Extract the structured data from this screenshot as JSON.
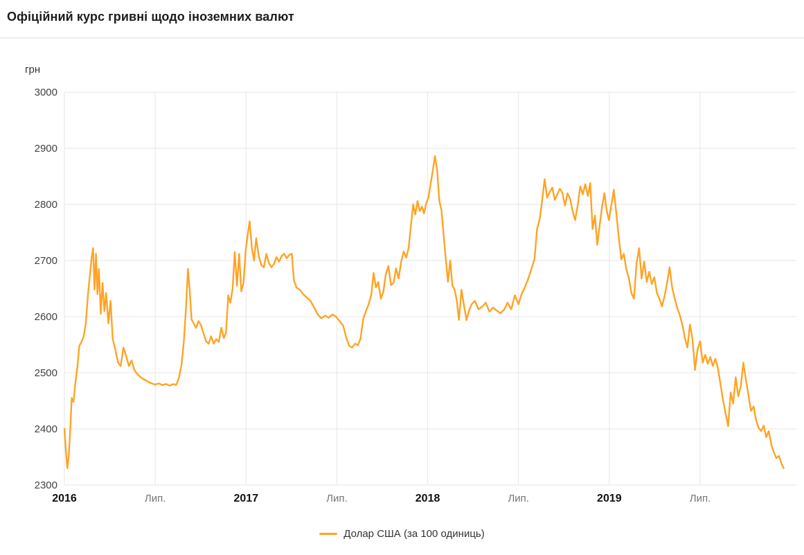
{
  "header": {
    "title": "Офіційний курс гривні щодо іноземних валют"
  },
  "chart_data": {
    "type": "line",
    "title": "Офіційний курс гривні щодо іноземних валют",
    "unit_label": "грн",
    "grid": true,
    "legend_position": "bottom",
    "colors": {
      "grid": "#e6e6e6",
      "y_label": "#424242",
      "year_label": "#111111",
      "month_label": "#757575"
    },
    "y_axis": {
      "range": [
        2300,
        3000
      ],
      "ticks": [
        3000,
        2900,
        2800,
        2700,
        2600,
        2500,
        2400,
        2300
      ]
    },
    "x_axis": {
      "range": [
        2016.0,
        2020.03
      ],
      "ticks": [
        {
          "x": 2016.0,
          "label": "2016",
          "style": "year"
        },
        {
          "x": 2016.5,
          "label": "Лип.",
          "style": "month"
        },
        {
          "x": 2017.0,
          "label": "2017",
          "style": "year"
        },
        {
          "x": 2017.5,
          "label": "Лип.",
          "style": "month"
        },
        {
          "x": 2018.0,
          "label": "2018",
          "style": "year"
        },
        {
          "x": 2018.5,
          "label": "Лип.",
          "style": "month"
        },
        {
          "x": 2019.0,
          "label": "2019",
          "style": "year"
        },
        {
          "x": 2019.5,
          "label": "Лип.",
          "style": "month"
        }
      ]
    },
    "series": [
      {
        "name": "Долар США (за 100 одиниць)",
        "color": "#ffa324",
        "points": [
          [
            2016.0,
            2400
          ],
          [
            2016.008,
            2362
          ],
          [
            2016.016,
            2330
          ],
          [
            2016.024,
            2352
          ],
          [
            2016.032,
            2398
          ],
          [
            2016.04,
            2455
          ],
          [
            2016.05,
            2448
          ],
          [
            2016.06,
            2480
          ],
          [
            2016.072,
            2512
          ],
          [
            2016.082,
            2548
          ],
          [
            2016.094,
            2555
          ],
          [
            2016.106,
            2565
          ],
          [
            2016.118,
            2588
          ],
          [
            2016.13,
            2640
          ],
          [
            2016.14,
            2672
          ],
          [
            2016.15,
            2705
          ],
          [
            2016.158,
            2722
          ],
          [
            2016.166,
            2648
          ],
          [
            2016.174,
            2712
          ],
          [
            2016.182,
            2640
          ],
          [
            2016.19,
            2685
          ],
          [
            2016.2,
            2605
          ],
          [
            2016.21,
            2660
          ],
          [
            2016.22,
            2610
          ],
          [
            2016.23,
            2642
          ],
          [
            2016.242,
            2588
          ],
          [
            2016.254,
            2628
          ],
          [
            2016.266,
            2560
          ],
          [
            2016.28,
            2542
          ],
          [
            2016.295,
            2518
          ],
          [
            2016.31,
            2512
          ],
          [
            2016.325,
            2545
          ],
          [
            2016.34,
            2530
          ],
          [
            2016.355,
            2512
          ],
          [
            2016.37,
            2522
          ],
          [
            2016.385,
            2505
          ],
          [
            2016.4,
            2498
          ],
          [
            2016.42,
            2492
          ],
          [
            2016.44,
            2488
          ],
          [
            2016.46,
            2484
          ],
          [
            2016.48,
            2481
          ],
          [
            2016.5,
            2479
          ],
          [
            2016.52,
            2481
          ],
          [
            2016.54,
            2478
          ],
          [
            2016.56,
            2480
          ],
          [
            2016.58,
            2477
          ],
          [
            2016.6,
            2480
          ],
          [
            2016.615,
            2478
          ],
          [
            2016.63,
            2490
          ],
          [
            2016.645,
            2515
          ],
          [
            2016.658,
            2558
          ],
          [
            2016.67,
            2618
          ],
          [
            2016.68,
            2685
          ],
          [
            2016.69,
            2645
          ],
          [
            2016.7,
            2595
          ],
          [
            2016.712,
            2588
          ],
          [
            2016.725,
            2580
          ],
          [
            2016.738,
            2592
          ],
          [
            2016.752,
            2585
          ],
          [
            2016.766,
            2570
          ],
          [
            2016.78,
            2556
          ],
          [
            2016.794,
            2552
          ],
          [
            2016.808,
            2565
          ],
          [
            2016.822,
            2552
          ],
          [
            2016.836,
            2560
          ],
          [
            2016.85,
            2555
          ],
          [
            2016.864,
            2580
          ],
          [
            2016.878,
            2562
          ],
          [
            2016.89,
            2572
          ],
          [
            2016.902,
            2638
          ],
          [
            2016.914,
            2625
          ],
          [
            2016.926,
            2650
          ],
          [
            2016.938,
            2715
          ],
          [
            2016.95,
            2655
          ],
          [
            2016.962,
            2712
          ],
          [
            2016.974,
            2645
          ],
          [
            2016.986,
            2660
          ],
          [
            2016.998,
            2718
          ],
          [
            2017.01,
            2748
          ],
          [
            2017.02,
            2770
          ],
          [
            2017.032,
            2722
          ],
          [
            2017.044,
            2700
          ],
          [
            2017.056,
            2740
          ],
          [
            2017.07,
            2708
          ],
          [
            2017.084,
            2692
          ],
          [
            2017.098,
            2688
          ],
          [
            2017.112,
            2712
          ],
          [
            2017.126,
            2695
          ],
          [
            2017.14,
            2688
          ],
          [
            2017.154,
            2694
          ],
          [
            2017.168,
            2706
          ],
          [
            2017.182,
            2698
          ],
          [
            2017.196,
            2708
          ],
          [
            2017.21,
            2712
          ],
          [
            2017.224,
            2704
          ],
          [
            2017.238,
            2710
          ],
          [
            2017.252,
            2712
          ],
          [
            2017.264,
            2664
          ],
          [
            2017.278,
            2652
          ],
          [
            2017.295,
            2648
          ],
          [
            2017.315,
            2640
          ],
          [
            2017.335,
            2634
          ],
          [
            2017.355,
            2628
          ],
          [
            2017.375,
            2616
          ],
          [
            2017.395,
            2604
          ],
          [
            2017.415,
            2597
          ],
          [
            2017.435,
            2602
          ],
          [
            2017.455,
            2598
          ],
          [
            2017.475,
            2604
          ],
          [
            2017.495,
            2600
          ],
          [
            2017.515,
            2592
          ],
          [
            2017.535,
            2584
          ],
          [
            2017.552,
            2562
          ],
          [
            2017.568,
            2548
          ],
          [
            2017.584,
            2545
          ],
          [
            2017.6,
            2552
          ],
          [
            2017.615,
            2549
          ],
          [
            2017.63,
            2560
          ],
          [
            2017.645,
            2596
          ],
          [
            2017.66,
            2610
          ],
          [
            2017.675,
            2622
          ],
          [
            2017.69,
            2640
          ],
          [
            2017.702,
            2678
          ],
          [
            2017.715,
            2652
          ],
          [
            2017.728,
            2662
          ],
          [
            2017.742,
            2632
          ],
          [
            2017.756,
            2645
          ],
          [
            2017.77,
            2676
          ],
          [
            2017.784,
            2690
          ],
          [
            2017.798,
            2656
          ],
          [
            2017.812,
            2660
          ],
          [
            2017.826,
            2686
          ],
          [
            2017.84,
            2668
          ],
          [
            2017.854,
            2698
          ],
          [
            2017.868,
            2716
          ],
          [
            2017.882,
            2705
          ],
          [
            2017.895,
            2722
          ],
          [
            2017.908,
            2762
          ],
          [
            2017.92,
            2800
          ],
          [
            2017.932,
            2782
          ],
          [
            2017.944,
            2806
          ],
          [
            2017.956,
            2788
          ],
          [
            2017.968,
            2796
          ],
          [
            2017.98,
            2784
          ],
          [
            2017.992,
            2802
          ],
          [
            2018.004,
            2812
          ],
          [
            2018.016,
            2836
          ],
          [
            2018.028,
            2860
          ],
          [
            2018.04,
            2886
          ],
          [
            2018.052,
            2862
          ],
          [
            2018.064,
            2806
          ],
          [
            2018.076,
            2790
          ],
          [
            2018.088,
            2745
          ],
          [
            2018.1,
            2702
          ],
          [
            2018.112,
            2662
          ],
          [
            2018.124,
            2700
          ],
          [
            2018.136,
            2656
          ],
          [
            2018.148,
            2648
          ],
          [
            2018.16,
            2630
          ],
          [
            2018.172,
            2594
          ],
          [
            2018.186,
            2648
          ],
          [
            2018.2,
            2620
          ],
          [
            2018.214,
            2594
          ],
          [
            2018.228,
            2612
          ],
          [
            2018.242,
            2622
          ],
          [
            2018.26,
            2628
          ],
          [
            2018.28,
            2613
          ],
          [
            2018.3,
            2618
          ],
          [
            2018.32,
            2625
          ],
          [
            2018.34,
            2609
          ],
          [
            2018.36,
            2616
          ],
          [
            2018.38,
            2611
          ],
          [
            2018.4,
            2606
          ],
          [
            2018.42,
            2612
          ],
          [
            2018.44,
            2625
          ],
          [
            2018.46,
            2613
          ],
          [
            2018.48,
            2638
          ],
          [
            2018.5,
            2622
          ],
          [
            2018.518,
            2641
          ],
          [
            2018.536,
            2653
          ],
          [
            2018.554,
            2668
          ],
          [
            2018.572,
            2686
          ],
          [
            2018.588,
            2702
          ],
          [
            2018.602,
            2756
          ],
          [
            2018.616,
            2772
          ],
          [
            2018.63,
            2806
          ],
          [
            2018.644,
            2845
          ],
          [
            2018.658,
            2812
          ],
          [
            2018.672,
            2822
          ],
          [
            2018.686,
            2830
          ],
          [
            2018.7,
            2808
          ],
          [
            2018.714,
            2818
          ],
          [
            2018.728,
            2828
          ],
          [
            2018.742,
            2820
          ],
          [
            2018.756,
            2798
          ],
          [
            2018.77,
            2820
          ],
          [
            2018.784,
            2810
          ],
          [
            2018.798,
            2788
          ],
          [
            2018.812,
            2772
          ],
          [
            2018.826,
            2798
          ],
          [
            2018.84,
            2832
          ],
          [
            2018.854,
            2818
          ],
          [
            2018.868,
            2836
          ],
          [
            2018.882,
            2815
          ],
          [
            2018.895,
            2838
          ],
          [
            2018.908,
            2756
          ],
          [
            2018.921,
            2780
          ],
          [
            2018.934,
            2728
          ],
          [
            2018.947,
            2762
          ],
          [
            2018.96,
            2796
          ],
          [
            2018.973,
            2820
          ],
          [
            2018.986,
            2788
          ],
          [
            2018.998,
            2772
          ],
          [
            2019.012,
            2800
          ],
          [
            2019.025,
            2826
          ],
          [
            2019.038,
            2786
          ],
          [
            2019.052,
            2742
          ],
          [
            2019.066,
            2702
          ],
          [
            2019.08,
            2712
          ],
          [
            2019.094,
            2684
          ],
          [
            2019.108,
            2668
          ],
          [
            2019.122,
            2642
          ],
          [
            2019.136,
            2632
          ],
          [
            2019.15,
            2695
          ],
          [
            2019.164,
            2722
          ],
          [
            2019.178,
            2668
          ],
          [
            2019.192,
            2698
          ],
          [
            2019.206,
            2662
          ],
          [
            2019.22,
            2680
          ],
          [
            2019.234,
            2658
          ],
          [
            2019.248,
            2670
          ],
          [
            2019.262,
            2642
          ],
          [
            2019.276,
            2632
          ],
          [
            2019.29,
            2618
          ],
          [
            2019.304,
            2636
          ],
          [
            2019.318,
            2660
          ],
          [
            2019.332,
            2688
          ],
          [
            2019.346,
            2652
          ],
          [
            2019.36,
            2632
          ],
          [
            2019.374,
            2616
          ],
          [
            2019.388,
            2603
          ],
          [
            2019.402,
            2586
          ],
          [
            2019.416,
            2562
          ],
          [
            2019.43,
            2545
          ],
          [
            2019.444,
            2586
          ],
          [
            2019.458,
            2560
          ],
          [
            2019.472,
            2505
          ],
          [
            2019.486,
            2542
          ],
          [
            2019.5,
            2556
          ],
          [
            2019.514,
            2518
          ],
          [
            2019.528,
            2532
          ],
          [
            2019.542,
            2516
          ],
          [
            2019.556,
            2528
          ],
          [
            2019.57,
            2512
          ],
          [
            2019.584,
            2525
          ],
          [
            2019.598,
            2508
          ],
          [
            2019.612,
            2480
          ],
          [
            2019.626,
            2452
          ],
          [
            2019.64,
            2428
          ],
          [
            2019.654,
            2405
          ],
          [
            2019.668,
            2465
          ],
          [
            2019.682,
            2445
          ],
          [
            2019.696,
            2492
          ],
          [
            2019.71,
            2458
          ],
          [
            2019.724,
            2476
          ],
          [
            2019.738,
            2518
          ],
          [
            2019.752,
            2488
          ],
          [
            2019.766,
            2460
          ],
          [
            2019.78,
            2432
          ],
          [
            2019.794,
            2440
          ],
          [
            2019.808,
            2416
          ],
          [
            2019.822,
            2402
          ],
          [
            2019.836,
            2396
          ],
          [
            2019.85,
            2406
          ],
          [
            2019.864,
            2385
          ],
          [
            2019.878,
            2396
          ],
          [
            2019.892,
            2372
          ],
          [
            2019.906,
            2358
          ],
          [
            2019.92,
            2348
          ],
          [
            2019.934,
            2352
          ],
          [
            2019.948,
            2338
          ],
          [
            2019.96,
            2330
          ]
        ]
      }
    ]
  }
}
